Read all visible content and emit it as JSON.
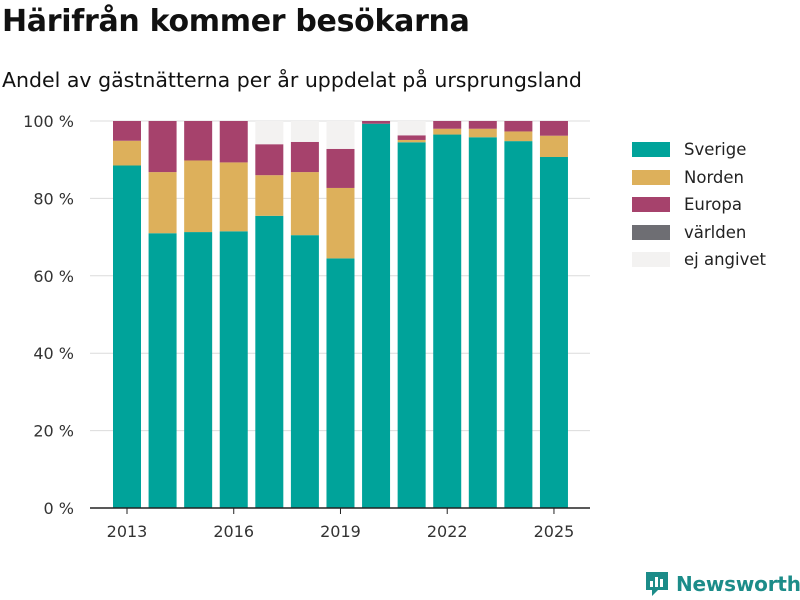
{
  "header": {
    "title": "Härifrån kommer besökarna",
    "subtitle": "Andel av gästnätterna per år uppdelat på ursprungsland"
  },
  "brand": {
    "name": "Newsworthy",
    "icon": "chart-bars-icon",
    "color": "#1c8c89"
  },
  "chart_data": {
    "type": "bar",
    "stacked": true,
    "x": [
      2013,
      2014,
      2015,
      2016,
      2017,
      2018,
      2019,
      2020,
      2021,
      2022,
      2023,
      2024,
      2025
    ],
    "xticks": [
      2013,
      2016,
      2019,
      2022,
      2025
    ],
    "yticks": [
      0,
      20,
      40,
      60,
      80,
      100
    ],
    "ytick_labels": [
      "0 %",
      "20 %",
      "40 %",
      "60 %",
      "80 %",
      "100 %"
    ],
    "ylim": [
      0,
      100
    ],
    "grid": true,
    "legend_position": "right",
    "series": [
      {
        "name": "Sverige",
        "color": "#00a39a",
        "values": [
          88.5,
          71.0,
          71.3,
          71.5,
          75.5,
          70.5,
          64.5,
          99.3,
          94.5,
          96.5,
          95.8,
          94.8,
          90.7
        ]
      },
      {
        "name": "Norden",
        "color": "#ddb05b",
        "values": [
          6.4,
          15.8,
          18.5,
          17.8,
          10.5,
          16.3,
          18.2,
          0.0,
          0.6,
          1.5,
          2.2,
          2.5,
          5.5
        ]
      },
      {
        "name": "Europa",
        "color": "#a6426c",
        "values": [
          5.1,
          13.2,
          10.2,
          10.7,
          8.0,
          7.8,
          10.1,
          0.7,
          1.2,
          2.0,
          2.0,
          2.7,
          3.8
        ]
      },
      {
        "name": "världen",
        "color": "#6e6e73",
        "values": [
          0,
          0,
          0,
          0,
          0,
          0,
          0,
          0,
          0,
          0,
          0,
          0,
          0
        ]
      },
      {
        "name": "ej angivet",
        "color": "#f3f2f1",
        "values": [
          0,
          0,
          0,
          0,
          6.0,
          5.4,
          7.2,
          0,
          3.7,
          0,
          0,
          0,
          0
        ]
      }
    ]
  }
}
